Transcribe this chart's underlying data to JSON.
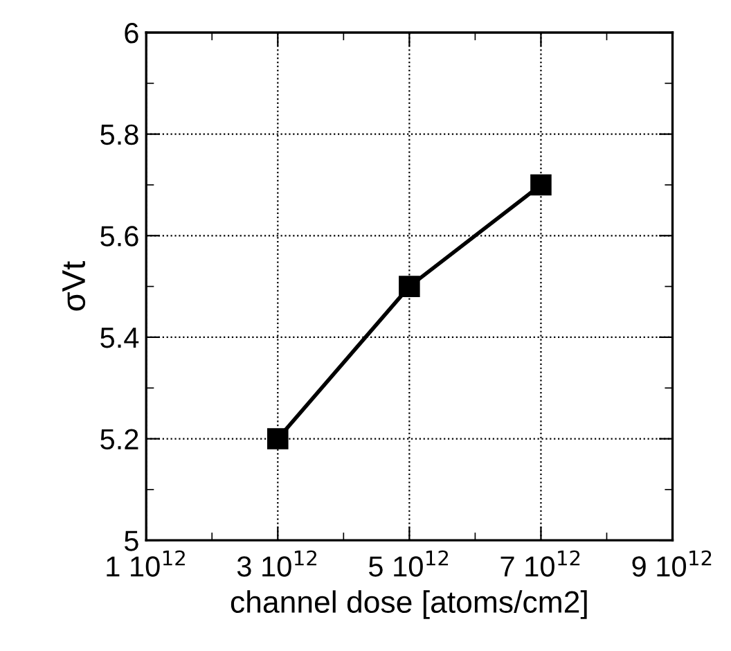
{
  "chart_data": {
    "type": "line",
    "xlabel": "channel dose [atoms/cm2]",
    "ylabel": "σVt",
    "categories": [
      "1 10$^{12}$",
      "3 10$^{12}$",
      "5 10$^{12}$",
      "7 10$^{12}$",
      "9 10$^{12}$"
    ],
    "series": [
      {
        "color": "#000000",
        "values": [
          null,
          5.2,
          5.5,
          5.7,
          null
        ]
      }
    ],
    "ylim": [
      5,
      6
    ],
    "yticks": [
      5,
      5.2,
      5.4,
      5.6,
      5.8,
      6
    ],
    "grid": true,
    "marker": "square",
    "line_style": "solid"
  }
}
